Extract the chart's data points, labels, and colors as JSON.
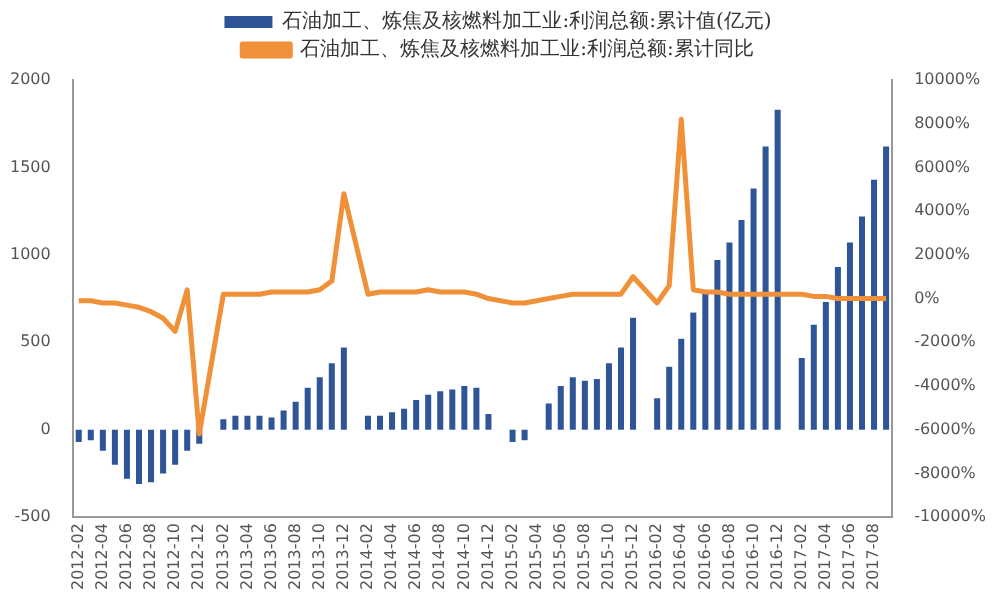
{
  "chart_data": {
    "type": "bar",
    "categories": [
      "2012-02",
      null,
      "2012-04",
      null,
      "2012-06",
      null,
      "2012-08",
      null,
      "2012-10",
      null,
      "2012-12",
      null,
      "2013-02",
      null,
      "2013-04",
      null,
      "2013-06",
      null,
      "2013-08",
      null,
      "2013-10",
      null,
      "2013-12",
      null,
      "2014-02",
      null,
      "2014-04",
      null,
      "2014-06",
      null,
      "2014-08",
      null,
      "2014-10",
      null,
      "2014-12",
      null,
      "2015-02",
      null,
      "2015-04",
      null,
      "2015-06",
      null,
      "2015-08",
      null,
      "2015-10",
      null,
      "2015-12",
      null,
      "2016-02",
      null,
      "2016-04",
      null,
      "2016-06",
      null,
      "2016-08",
      null,
      "2016-10",
      null,
      "2016-12",
      null,
      "2017-02",
      null,
      "2017-04",
      null,
      "2017-06",
      null,
      "2017-08",
      null
    ],
    "series": [
      {
        "name": "石油加工、炼焦及核燃料加工业:利润总额:累计值(亿元)",
        "color": "#2e5597",
        "values": [
          -70,
          -60,
          -120,
          -200,
          -280,
          -310,
          -300,
          -250,
          -200,
          -120,
          -80,
          null,
          60,
          80,
          80,
          80,
          70,
          110,
          160,
          240,
          300,
          380,
          470,
          null,
          80,
          80,
          100,
          120,
          170,
          200,
          220,
          230,
          250,
          240,
          90,
          null,
          -70,
          -60,
          null,
          150,
          250,
          300,
          280,
          290,
          380,
          470,
          640,
          null,
          180,
          360,
          520,
          670,
          780,
          970,
          1070,
          1200,
          1380,
          1620,
          1830,
          null,
          410,
          600,
          730,
          930,
          1070,
          1220,
          1430,
          1620
        ]
      },
      {
        "name": "石油加工、炼焦及核燃料加工业:利润总额:累计同比",
        "type": "line",
        "axis": "y2",
        "color": "#f0913a",
        "values": [
          -100,
          -100,
          -200,
          -200,
          -300,
          -400,
          -600,
          -900,
          -1500,
          400,
          -6200,
          null,
          200,
          200,
          200,
          200,
          300,
          300,
          300,
          300,
          400,
          800,
          4800,
          null,
          200,
          300,
          300,
          300,
          300,
          400,
          300,
          300,
          300,
          200,
          0,
          null,
          -200,
          -200,
          -100,
          0,
          100,
          200,
          200,
          200,
          200,
          200,
          1000,
          null,
          -200,
          600,
          8200,
          400,
          300,
          300,
          200,
          200,
          200,
          200,
          200,
          null,
          200,
          100,
          100,
          0,
          0,
          0,
          0,
          0
        ]
      }
    ],
    "ylim": [
      -500,
      2000
    ],
    "yticks": [
      -500,
      0,
      500,
      1000,
      1500,
      2000
    ],
    "y2lim": [
      -10000,
      10000
    ],
    "y2ticks": [
      {
        "value": -10000,
        "label": "-10000%"
      },
      {
        "value": -8000,
        "label": "-8000%"
      },
      {
        "value": -6000,
        "label": "-6000%"
      },
      {
        "value": -4000,
        "label": "-4000%"
      },
      {
        "value": -2000,
        "label": "-2000%"
      },
      {
        "value": 0,
        "label": "0%"
      },
      {
        "value": 2000,
        "label": "2000%"
      },
      {
        "value": 4000,
        "label": "4000%"
      },
      {
        "value": 6000,
        "label": "6000%"
      },
      {
        "value": 8000,
        "label": "8000%"
      },
      {
        "value": 10000,
        "label": "10000%"
      }
    ],
    "grid": false,
    "legend": "top",
    "marker": "none",
    "line_style": "solid"
  }
}
